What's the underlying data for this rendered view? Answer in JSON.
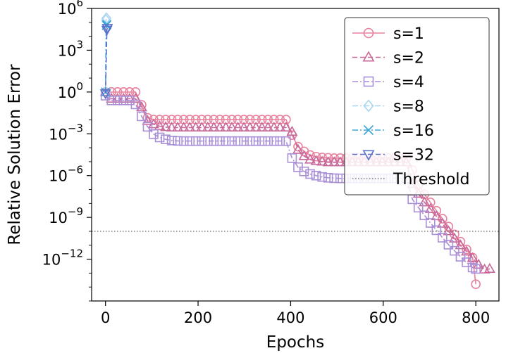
{
  "chart_data": {
    "type": "line",
    "title": "",
    "xlabel": "Epochs",
    "ylabel": "Relative Solution Error",
    "yscale": "log",
    "xlim": [
      -30,
      850
    ],
    "ylim_exponent": [
      -15,
      6
    ],
    "xticks": [
      0,
      200,
      400,
      600,
      800
    ],
    "xtick_labels": [
      "0",
      "200",
      "400",
      "600",
      "800"
    ],
    "ytick_exponents": [
      6,
      3,
      0,
      -3,
      -6,
      -9,
      -12
    ],
    "ytick_labels": [
      {
        "base": "10",
        "exp": "6"
      },
      {
        "base": "10",
        "exp": "3"
      },
      {
        "base": "10",
        "exp": "0"
      },
      {
        "base": "10",
        "exp": "−3"
      },
      {
        "base": "10",
        "exp": "−6"
      },
      {
        "base": "10",
        "exp": "−9"
      },
      {
        "base": "10",
        "exp": "−12"
      }
    ],
    "legend_position": "top-right",
    "threshold": {
      "name": "Threshold",
      "value": 1e-10,
      "color": "#444444"
    },
    "series": [
      {
        "name": "s=1",
        "color": "#e8829e",
        "marker": "circle",
        "dash": "solid",
        "points": [
          [
            0,
            1.0
          ],
          [
            13,
            1.0
          ],
          [
            26,
            1.0
          ],
          [
            39,
            1.0
          ],
          [
            52,
            1.0
          ],
          [
            65,
            1.0
          ],
          [
            78,
            0.12
          ],
          [
            91,
            0.014
          ],
          [
            104,
            0.0105
          ],
          [
            117,
            0.0105
          ],
          [
            130,
            0.0105
          ],
          [
            143,
            0.0105
          ],
          [
            156,
            0.0105
          ],
          [
            169,
            0.0105
          ],
          [
            182,
            0.0105
          ],
          [
            195,
            0.0105
          ],
          [
            208,
            0.0105
          ],
          [
            221,
            0.0105
          ],
          [
            234,
            0.0105
          ],
          [
            247,
            0.0105
          ],
          [
            260,
            0.0105
          ],
          [
            273,
            0.0105
          ],
          [
            286,
            0.0105
          ],
          [
            299,
            0.0105
          ],
          [
            312,
            0.0105
          ],
          [
            325,
            0.0105
          ],
          [
            338,
            0.0105
          ],
          [
            351,
            0.0105
          ],
          [
            364,
            0.0105
          ],
          [
            377,
            0.0105
          ],
          [
            390,
            0.0105
          ],
          [
            403,
            0.0008
          ],
          [
            416,
            0.00012
          ],
          [
            429,
            5.5e-05
          ],
          [
            442,
            3e-05
          ],
          [
            455,
            2.3e-05
          ],
          [
            468,
            2e-05
          ],
          [
            481,
            1.9e-05
          ],
          [
            494,
            1.8e-05
          ],
          [
            507,
            1.8e-05
          ],
          [
            520,
            1.8e-05
          ],
          [
            533,
            1.8e-05
          ],
          [
            546,
            1.8e-05
          ],
          [
            559,
            1.8e-05
          ],
          [
            572,
            1.8e-05
          ],
          [
            585,
            1.8e-05
          ],
          [
            598,
            1.8e-05
          ],
          [
            611,
            1.8e-05
          ],
          [
            624,
            1.8e-05
          ],
          [
            637,
            1.8e-05
          ],
          [
            650,
            1.8e-05
          ],
          [
            663,
            2.5e-06
          ],
          [
            676,
            2.2e-07
          ],
          [
            689,
            4.5e-08
          ],
          [
            702,
            1.2e-08
          ],
          [
            715,
            3e-09
          ],
          [
            728,
            8e-10
          ],
          [
            741,
            2.2e-10
          ],
          [
            754,
            6e-11
          ],
          [
            767,
            1.8e-11
          ],
          [
            780,
            5e-12
          ],
          [
            793,
            1.3e-12
          ],
          [
            800,
            1.6e-14
          ]
        ]
      },
      {
        "name": "s=2",
        "color": "#c8689a",
        "marker": "triangle-up",
        "dash": "dashed",
        "points": [
          [
            0,
            1.0
          ],
          [
            13,
            0.33
          ],
          [
            26,
            0.33
          ],
          [
            39,
            0.33
          ],
          [
            52,
            0.33
          ],
          [
            65,
            0.33
          ],
          [
            78,
            0.08
          ],
          [
            91,
            0.0085
          ],
          [
            104,
            0.0048
          ],
          [
            117,
            0.0035
          ],
          [
            130,
            0.003
          ],
          [
            143,
            0.0028
          ],
          [
            156,
            0.0028
          ],
          [
            169,
            0.0028
          ],
          [
            182,
            0.0028
          ],
          [
            195,
            0.0028
          ],
          [
            208,
            0.0028
          ],
          [
            221,
            0.0028
          ],
          [
            234,
            0.0028
          ],
          [
            247,
            0.0028
          ],
          [
            260,
            0.0028
          ],
          [
            273,
            0.0028
          ],
          [
            286,
            0.0028
          ],
          [
            299,
            0.0028
          ],
          [
            312,
            0.0028
          ],
          [
            325,
            0.0028
          ],
          [
            338,
            0.0028
          ],
          [
            351,
            0.0028
          ],
          [
            364,
            0.0028
          ],
          [
            377,
            0.0028
          ],
          [
            390,
            0.0028
          ],
          [
            403,
            0.0014
          ],
          [
            416,
            7e-05
          ],
          [
            429,
            2.5e-05
          ],
          [
            442,
            1.4e-05
          ],
          [
            455,
            1.1e-05
          ],
          [
            468,
            1e-05
          ],
          [
            481,
            9e-06
          ],
          [
            494,
            9e-06
          ],
          [
            507,
            9e-06
          ],
          [
            520,
            9e-06
          ],
          [
            533,
            9e-06
          ],
          [
            546,
            9e-06
          ],
          [
            559,
            9e-06
          ],
          [
            572,
            9e-06
          ],
          [
            585,
            9e-06
          ],
          [
            598,
            9e-06
          ],
          [
            611,
            9e-06
          ],
          [
            624,
            9e-06
          ],
          [
            637,
            9e-06
          ],
          [
            650,
            9e-06
          ],
          [
            663,
            2.5e-07
          ],
          [
            676,
            5e-08
          ],
          [
            689,
            1.2e-08
          ],
          [
            702,
            4e-09
          ],
          [
            715,
            1.2e-09
          ],
          [
            728,
            3.5e-10
          ],
          [
            741,
            1e-10
          ],
          [
            754,
            3e-11
          ],
          [
            767,
            1e-11
          ],
          [
            780,
            3.5e-12
          ],
          [
            793,
            1.2e-12
          ],
          [
            806,
            4e-13
          ],
          [
            819,
            1.8e-13
          ],
          [
            830,
            2e-13
          ]
        ]
      },
      {
        "name": "s=4",
        "color": "#a98fd6",
        "marker": "square",
        "dash": "dashdot",
        "points": [
          [
            0,
            0.55
          ],
          [
            13,
            0.25
          ],
          [
            26,
            0.25
          ],
          [
            39,
            0.25
          ],
          [
            52,
            0.25
          ],
          [
            65,
            0.13
          ],
          [
            78,
            0.018
          ],
          [
            91,
            0.0032
          ],
          [
            104,
            0.00095
          ],
          [
            117,
            0.00055
          ],
          [
            130,
            0.0004
          ],
          [
            143,
            0.00033
          ],
          [
            156,
            0.00031
          ],
          [
            169,
            0.0003
          ],
          [
            182,
            0.0003
          ],
          [
            195,
            0.0003
          ],
          [
            208,
            0.0003
          ],
          [
            221,
            0.0003
          ],
          [
            234,
            0.0003
          ],
          [
            247,
            0.0003
          ],
          [
            260,
            0.0003
          ],
          [
            273,
            0.0003
          ],
          [
            286,
            0.0003
          ],
          [
            299,
            0.0003
          ],
          [
            312,
            0.0003
          ],
          [
            325,
            0.0003
          ],
          [
            338,
            0.0003
          ],
          [
            351,
            0.0003
          ],
          [
            364,
            0.0003
          ],
          [
            377,
            0.0003
          ],
          [
            390,
            0.0003
          ],
          [
            403,
            1.8e-05
          ],
          [
            416,
            4e-06
          ],
          [
            429,
            2e-06
          ],
          [
            442,
            1.3e-06
          ],
          [
            455,
            1e-06
          ],
          [
            468,
            8e-07
          ],
          [
            481,
            7e-07
          ],
          [
            494,
            6.5e-07
          ],
          [
            507,
            6.3e-07
          ],
          [
            520,
            6.3e-07
          ],
          [
            533,
            6.3e-07
          ],
          [
            546,
            6.3e-07
          ],
          [
            559,
            6.3e-07
          ],
          [
            572,
            6.3e-07
          ],
          [
            585,
            6.3e-07
          ],
          [
            598,
            6.3e-07
          ],
          [
            611,
            6.3e-07
          ],
          [
            624,
            6.3e-07
          ],
          [
            637,
            6.3e-07
          ],
          [
            650,
            6.3e-07
          ],
          [
            663,
            2e-08
          ],
          [
            676,
            5e-09
          ],
          [
            689,
            1.4e-09
          ],
          [
            702,
            4e-10
          ],
          [
            715,
            1.2e-10
          ],
          [
            728,
            3.5e-11
          ],
          [
            741,
            1.1e-11
          ],
          [
            754,
            4e-12
          ],
          [
            767,
            1.5e-12
          ],
          [
            780,
            6e-13
          ],
          [
            793,
            2.5e-13
          ],
          [
            800,
            2e-13
          ]
        ]
      },
      {
        "name": "s=8",
        "color": "#a8d6f0",
        "marker": "diamond",
        "dash": "dashdot",
        "points": [
          [
            0,
            1.0
          ],
          [
            1,
            150000
          ],
          [
            2,
            200000
          ]
        ]
      },
      {
        "name": "s=16",
        "color": "#3aa6d8",
        "marker": "x",
        "dash": "dashdot",
        "points": [
          [
            0,
            1.0
          ],
          [
            2,
            60000
          ],
          [
            3,
            70000
          ]
        ]
      },
      {
        "name": "s=32",
        "color": "#5a70c8",
        "marker": "triangle-down",
        "dash": "dashed",
        "points": [
          [
            0,
            0.8
          ],
          [
            3,
            30000
          ],
          [
            4,
            40000
          ]
        ]
      }
    ]
  }
}
